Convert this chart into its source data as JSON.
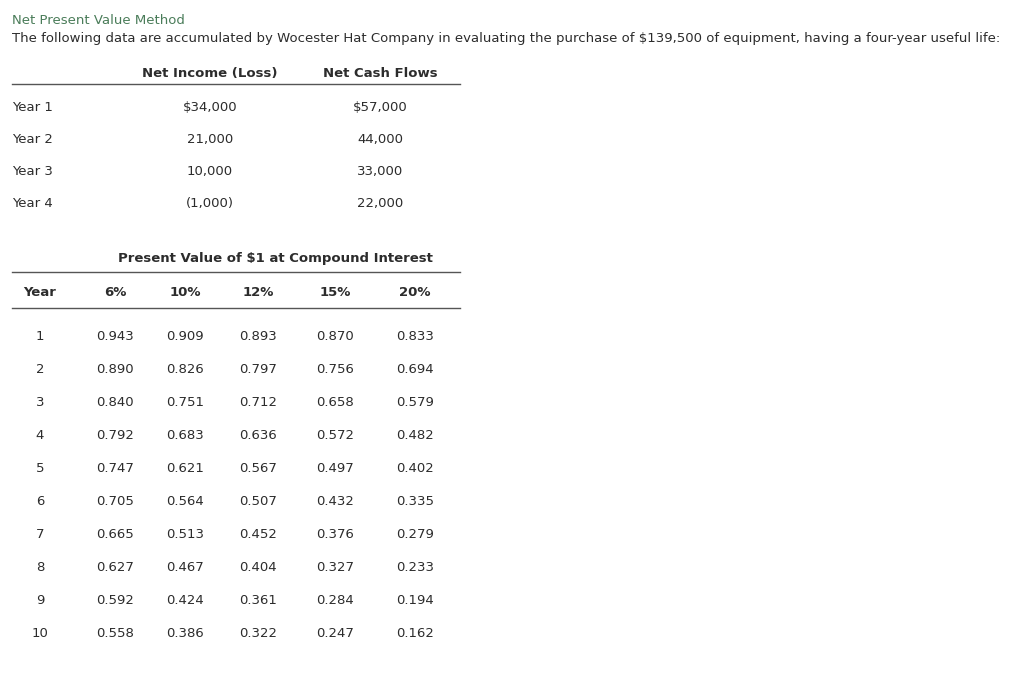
{
  "title": "Net Present Value Method",
  "intro": "The following data are accumulated by Wocester Hat Company in evaluating the purchase of $139,500 of equipment, having a four-year useful life:",
  "top_table_headers": [
    "",
    "Net Income (Loss)",
    "Net Cash Flows"
  ],
  "top_table_rows": [
    [
      "Year 1",
      "$34,000",
      "$57,000"
    ],
    [
      "Year 2",
      "21,000",
      "44,000"
    ],
    [
      "Year 3",
      "10,000",
      "33,000"
    ],
    [
      "Year 4",
      "(1,000)",
      "22,000"
    ]
  ],
  "pv_title": "Present Value of $1 at Compound Interest",
  "pv_headers": [
    "Year",
    "6%",
    "10%",
    "12%",
    "15%",
    "20%"
  ],
  "pv_rows": [
    [
      "1",
      "0.943",
      "0.909",
      "0.893",
      "0.870",
      "0.833"
    ],
    [
      "2",
      "0.890",
      "0.826",
      "0.797",
      "0.756",
      "0.694"
    ],
    [
      "3",
      "0.840",
      "0.751",
      "0.712",
      "0.658",
      "0.579"
    ],
    [
      "4",
      "0.792",
      "0.683",
      "0.636",
      "0.572",
      "0.482"
    ],
    [
      "5",
      "0.747",
      "0.621",
      "0.567",
      "0.497",
      "0.402"
    ],
    [
      "6",
      "0.705",
      "0.564",
      "0.507",
      "0.432",
      "0.335"
    ],
    [
      "7",
      "0.665",
      "0.513",
      "0.452",
      "0.376",
      "0.279"
    ],
    [
      "8",
      "0.627",
      "0.467",
      "0.404",
      "0.327",
      "0.233"
    ],
    [
      "9",
      "0.592",
      "0.424",
      "0.361",
      "0.284",
      "0.194"
    ],
    [
      "10",
      "0.558",
      "0.386",
      "0.322",
      "0.247",
      "0.162"
    ]
  ],
  "title_color": "#4a7c59",
  "text_color": "#2c2c2c",
  "bg_color": "#ffffff",
  "line_color": "#555555",
  "font_size_title": 9.5,
  "font_size_intro": 9.5,
  "font_size_table": 9.5
}
